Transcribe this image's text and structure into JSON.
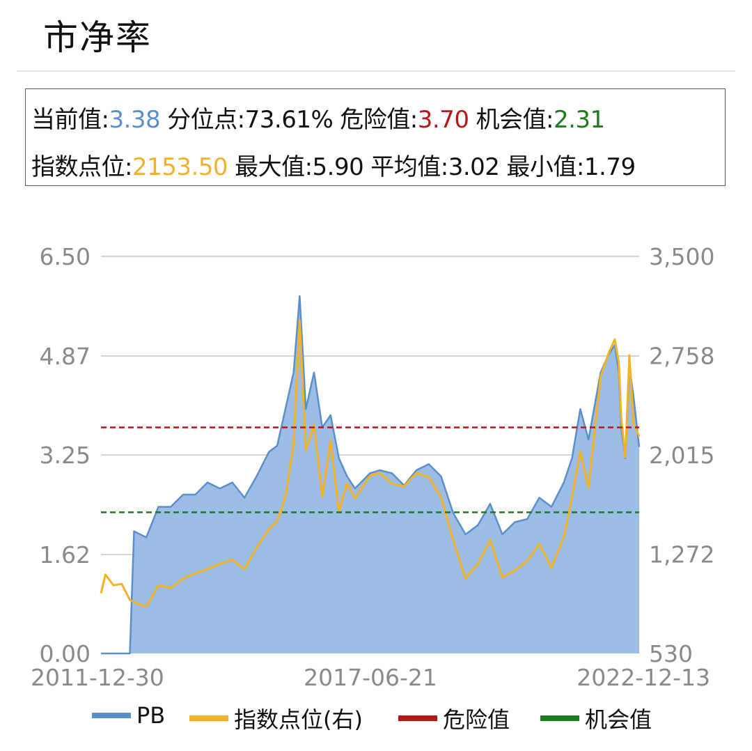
{
  "title": "市净率",
  "info": {
    "current_label": "当前值:",
    "current_value": "3.38",
    "percentile_label": "分位点:",
    "percentile_value": "73.61%",
    "danger_label": "危险值:",
    "danger_value": "3.70",
    "opportunity_label": "机会值:",
    "opportunity_value": "2.31",
    "index_label": "指数点位:",
    "index_value": "2153.50",
    "max_label": "最大值:",
    "max_value": "5.90",
    "avg_label": "平均值:",
    "avg_value": "3.02",
    "min_label": "最小值:",
    "min_value": "1.79"
  },
  "colors": {
    "pb_line": "#5b8fc9",
    "pb_fill": "#9bbde6",
    "index_line": "#f4b225",
    "danger": "#b5171b",
    "opportunity": "#1d7a1d",
    "grid": "#aaaaaa"
  },
  "legend": {
    "pb": "PB",
    "index": "指数点位(右)",
    "danger": "危险值",
    "opportunity": "机会值"
  },
  "chart_data": {
    "type": "area",
    "title": "市净率",
    "x_tick_labels": [
      "2011-12-30",
      "2017-06-21",
      "2022-12-13"
    ],
    "x_range": [
      "2011-12-30",
      "2022-12-13"
    ],
    "y_left": {
      "ticks": [
        "0.00",
        "1.62",
        "3.25",
        "4.87",
        "6.50"
      ],
      "tick_values": [
        0,
        1.62,
        3.25,
        4.87,
        6.5
      ],
      "range": [
        0,
        6.5
      ]
    },
    "y_right": {
      "ticks": [
        "530",
        "1,272",
        "2,015",
        "2,758",
        "3,500"
      ],
      "tick_values": [
        530,
        1272,
        2015,
        2758,
        3500
      ],
      "range": [
        530,
        3500
      ]
    },
    "reference_lines": [
      {
        "name": "危险值",
        "value": 3.7,
        "axis": "left"
      },
      {
        "name": "机会值",
        "value": 2.31,
        "axis": "left"
      }
    ],
    "grid": true,
    "legend_position": "bottom",
    "series": [
      {
        "name": "PB",
        "axis": "left",
        "type": "area",
        "points": [
          [
            "2011-12-30",
            0
          ],
          [
            "2012-06-01",
            0
          ],
          [
            "2012-08-01",
            0
          ],
          [
            "2012-09-01",
            2.0
          ],
          [
            "2012-12-01",
            1.9
          ],
          [
            "2013-03-01",
            2.4
          ],
          [
            "2013-06-01",
            2.4
          ],
          [
            "2013-09-01",
            2.6
          ],
          [
            "2013-12-01",
            2.6
          ],
          [
            "2014-03-01",
            2.8
          ],
          [
            "2014-06-01",
            2.7
          ],
          [
            "2014-09-01",
            2.8
          ],
          [
            "2014-12-01",
            2.55
          ],
          [
            "2015-03-01",
            2.9
          ],
          [
            "2015-06-01",
            3.3
          ],
          [
            "2015-08-01",
            3.4
          ],
          [
            "2015-10-01",
            4.0
          ],
          [
            "2015-12-01",
            4.6
          ],
          [
            "2016-01-15",
            5.85
          ],
          [
            "2016-03-01",
            4.0
          ],
          [
            "2016-05-01",
            4.6
          ],
          [
            "2016-07-01",
            3.7
          ],
          [
            "2016-09-01",
            3.9
          ],
          [
            "2016-11-01",
            3.2
          ],
          [
            "2017-01-01",
            2.9
          ],
          [
            "2017-03-01",
            2.7
          ],
          [
            "2017-06-21",
            2.95
          ],
          [
            "2017-09-01",
            3.0
          ],
          [
            "2017-12-01",
            2.95
          ],
          [
            "2018-03-01",
            2.75
          ],
          [
            "2018-06-01",
            3.0
          ],
          [
            "2018-09-01",
            3.1
          ],
          [
            "2018-12-01",
            2.9
          ],
          [
            "2019-03-01",
            2.3
          ],
          [
            "2019-06-01",
            1.95
          ],
          [
            "2019-09-01",
            2.1
          ],
          [
            "2019-12-01",
            2.45
          ],
          [
            "2020-03-01",
            1.95
          ],
          [
            "2020-06-01",
            2.15
          ],
          [
            "2020-09-01",
            2.2
          ],
          [
            "2020-12-01",
            2.55
          ],
          [
            "2021-03-01",
            2.4
          ],
          [
            "2021-06-01",
            2.8
          ],
          [
            "2021-08-01",
            3.2
          ],
          [
            "2021-10-01",
            4.0
          ],
          [
            "2021-12-01",
            3.5
          ],
          [
            "2022-03-01",
            4.6
          ],
          [
            "2022-05-01",
            4.9
          ],
          [
            "2022-06-15",
            5.05
          ],
          [
            "2022-07-15",
            4.6
          ],
          [
            "2022-08-01",
            3.7
          ],
          [
            "2022-09-01",
            3.2
          ],
          [
            "2022-10-01",
            4.7
          ],
          [
            "2022-11-01",
            4.2
          ],
          [
            "2022-12-13",
            3.38
          ]
        ]
      },
      {
        "name": "指数点位(右)",
        "axis": "right",
        "type": "line",
        "points": [
          [
            "2011-12-30",
            980
          ],
          [
            "2012-02-01",
            1120
          ],
          [
            "2012-04-01",
            1040
          ],
          [
            "2012-06-01",
            1050
          ],
          [
            "2012-08-01",
            930
          ],
          [
            "2012-10-01",
            900
          ],
          [
            "2012-12-01",
            880
          ],
          [
            "2013-03-01",
            1040
          ],
          [
            "2013-06-01",
            1020
          ],
          [
            "2013-09-01",
            1090
          ],
          [
            "2013-12-01",
            1130
          ],
          [
            "2014-03-01",
            1160
          ],
          [
            "2014-06-01",
            1200
          ],
          [
            "2014-09-01",
            1230
          ],
          [
            "2014-12-01",
            1160
          ],
          [
            "2015-03-01",
            1320
          ],
          [
            "2015-06-01",
            1460
          ],
          [
            "2015-08-01",
            1520
          ],
          [
            "2015-10-01",
            1700
          ],
          [
            "2015-12-01",
            2100
          ],
          [
            "2016-01-15",
            3020
          ],
          [
            "2016-03-01",
            2050
          ],
          [
            "2016-05-01",
            2240
          ],
          [
            "2016-07-01",
            1700
          ],
          [
            "2016-09-01",
            2120
          ],
          [
            "2016-11-01",
            1590
          ],
          [
            "2017-01-01",
            1800
          ],
          [
            "2017-03-01",
            1690
          ],
          [
            "2017-06-21",
            1860
          ],
          [
            "2017-09-01",
            1880
          ],
          [
            "2017-12-01",
            1800
          ],
          [
            "2018-03-01",
            1780
          ],
          [
            "2018-06-01",
            1880
          ],
          [
            "2018-09-01",
            1850
          ],
          [
            "2018-12-01",
            1700
          ],
          [
            "2019-03-01",
            1380
          ],
          [
            "2019-06-01",
            1090
          ],
          [
            "2019-09-01",
            1200
          ],
          [
            "2019-12-01",
            1380
          ],
          [
            "2020-03-01",
            1100
          ],
          [
            "2020-06-01",
            1150
          ],
          [
            "2020-09-01",
            1220
          ],
          [
            "2020-12-01",
            1350
          ],
          [
            "2021-03-01",
            1170
          ],
          [
            "2021-06-01",
            1400
          ],
          [
            "2021-08-01",
            1700
          ],
          [
            "2021-10-01",
            2040
          ],
          [
            "2021-12-01",
            1770
          ],
          [
            "2022-03-01",
            2600
          ],
          [
            "2022-05-01",
            2780
          ],
          [
            "2022-06-15",
            2880
          ],
          [
            "2022-07-15",
            2700
          ],
          [
            "2022-08-01",
            2300
          ],
          [
            "2022-09-01",
            2000
          ],
          [
            "2022-10-01",
            2760
          ],
          [
            "2022-11-01",
            2250
          ],
          [
            "2022-12-13",
            2153.5
          ]
        ]
      }
    ]
  }
}
